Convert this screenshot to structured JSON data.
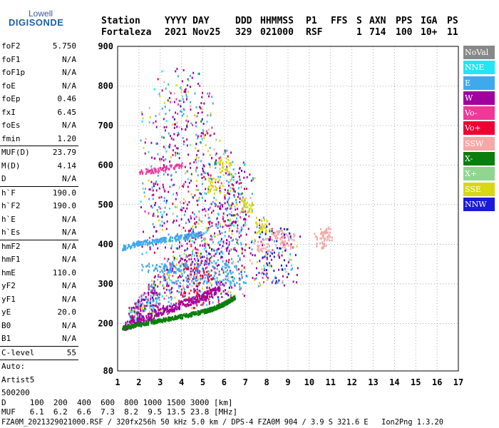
{
  "logo": {
    "top": "Lowell",
    "main": "DIGISONDE"
  },
  "header": {
    "row1": [
      {
        "text": "Station",
        "x": 142
      },
      {
        "text": "YYYY DAY",
        "x": 231
      },
      {
        "text": "DDD",
        "x": 330
      },
      {
        "text": "HHMMSS",
        "x": 365
      },
      {
        "text": "P1",
        "x": 429
      },
      {
        "text": "FFS",
        "x": 464
      },
      {
        "text": "S",
        "x": 500
      },
      {
        "text": "AXN",
        "x": 518
      },
      {
        "text": "PPS",
        "x": 555
      },
      {
        "text": "IGA",
        "x": 590
      },
      {
        "text": "PS",
        "x": 627
      }
    ],
    "row2": [
      {
        "text": "Fortaleza",
        "x": 142
      },
      {
        "text": "2021 Nov25",
        "x": 231
      },
      {
        "text": "329",
        "x": 330
      },
      {
        "text": "021000",
        "x": 365
      },
      {
        "text": "RSF",
        "x": 429
      },
      {
        "text": "1",
        "x": 500
      },
      {
        "text": "714",
        "x": 518
      },
      {
        "text": "100",
        "x": 555
      },
      {
        "text": "10+",
        "x": 590
      },
      {
        "text": "11",
        "x": 627
      }
    ]
  },
  "panel": [
    {
      "label": "foF2",
      "value": "5.750"
    },
    {
      "label": "foF1",
      "value": "N/A"
    },
    {
      "label": "foF1p",
      "value": "N/A"
    },
    {
      "label": "foE",
      "value": "N/A"
    },
    {
      "label": "foEp",
      "value": "0.46"
    },
    {
      "label": "fxI",
      "value": "6.45"
    },
    {
      "label": "foEs",
      "value": "N/A"
    },
    {
      "label": "fmin",
      "value": "1.20"
    },
    {
      "sep": true
    },
    {
      "label": "MUF(D)",
      "value": "23.79"
    },
    {
      "label": "M(D)",
      "value": "4.14"
    },
    {
      "label": "D",
      "value": "N/A"
    },
    {
      "sep": true
    },
    {
      "label": "h`F",
      "value": "190.0"
    },
    {
      "label": "h`F2",
      "value": "190.0"
    },
    {
      "label": "h`E",
      "value": "N/A"
    },
    {
      "label": "h`Es",
      "value": "N/A"
    },
    {
      "sep": true
    },
    {
      "label": "hmF2",
      "value": "N/A"
    },
    {
      "label": "hmF1",
      "value": "N/A"
    },
    {
      "label": "hmE",
      "value": "110.0"
    },
    {
      "label": "yF2",
      "value": "N/A"
    },
    {
      "label": "yF1",
      "value": "N/A"
    },
    {
      "label": "yE",
      "value": "20.0"
    },
    {
      "label": "B0",
      "value": "N/A"
    },
    {
      "label": "B1",
      "value": "N/A"
    },
    {
      "sep": true
    },
    {
      "label": "C-level",
      "value": "55"
    },
    {
      "sep": true
    },
    {
      "label": "Auto:",
      "value": ""
    },
    {
      "label": "Artist5",
      "value": ""
    },
    {
      "label": "500200",
      "value": ""
    }
  ],
  "legend": [
    {
      "label": "NoVal",
      "color": "#888888"
    },
    {
      "label": "NNE",
      "color": "#22e5f5"
    },
    {
      "label": "E",
      "color": "#3fa9ee"
    },
    {
      "label": "W",
      "color": "#a0009e"
    },
    {
      "label": "Vo-",
      "color": "#f0389a"
    },
    {
      "label": "Vo+",
      "color": "#ee0033"
    },
    {
      "label": "SSW",
      "color": "#f4a8a8"
    },
    {
      "label": "X-",
      "color": "#0b7f0b"
    },
    {
      "label": "X+",
      "color": "#8fd68f"
    },
    {
      "label": "SSE",
      "color": "#d8d812"
    },
    {
      "label": "NNW",
      "color": "#1a1adb"
    }
  ],
  "footer": {
    "d_row": "D     100  200  400  600  800 1000 1500 3000 [km]",
    "muf_row": "MUF   6.1  6.2  6.6  7.3  8.2  9.5 13.5 23.8 [MHz]",
    "info": "FZA0M_2021329021000.RSF / 320fx256h 50 kHz 5.0 km / DPS-4 FZA0M 904 / 3.9 S 321.6 E   Ion2Png 1.3.20"
  },
  "chart_data": {
    "type": "scatter",
    "title": "",
    "xlabel": "",
    "ylabel": "",
    "xlim": [
      1,
      17
    ],
    "ylim": [
      80,
      900
    ],
    "x_ticks": [
      1,
      2,
      3,
      4,
      5,
      6,
      7,
      8,
      9,
      10,
      11,
      12,
      13,
      14,
      15,
      16,
      17
    ],
    "y_ticks": [
      80,
      200,
      300,
      400,
      500,
      600,
      700,
      800,
      900
    ],
    "grid": true,
    "trace_F_lower": {
      "series": "X-",
      "points": [
        [
          1.2,
          190
        ],
        [
          2,
          200
        ],
        [
          3,
          210
        ],
        [
          4,
          220
        ],
        [
          5,
          232
        ],
        [
          5.5,
          240
        ],
        [
          6,
          252
        ],
        [
          6.5,
          268
        ]
      ]
    },
    "trace_F_upper": {
      "series": "W",
      "points": [
        [
          1.2,
          192
        ],
        [
          2,
          210
        ],
        [
          3,
          230
        ],
        [
          4,
          250
        ],
        [
          5,
          270
        ],
        [
          5.8,
          290
        ]
      ]
    },
    "trace_multi_400": {
      "series": "E",
      "points": [
        [
          1.2,
          392
        ],
        [
          2,
          405
        ],
        [
          3,
          412
        ],
        [
          4,
          420
        ],
        [
          5,
          430
        ]
      ]
    },
    "trace_multi_580": {
      "series": "Vo-",
      "points": [
        [
          2,
          585
        ],
        [
          3,
          590
        ],
        [
          4,
          603
        ]
      ]
    },
    "clusters": [
      {
        "series": "SSW",
        "points": [
          [
            7.8,
            400
          ],
          [
            8.5,
            420
          ],
          [
            9,
            410
          ],
          [
            10.5,
            410
          ],
          [
            10.8,
            425
          ]
        ]
      },
      {
        "series": "SSE",
        "points": [
          [
            5.5,
            550
          ],
          [
            6,
            600
          ],
          [
            7,
            500
          ],
          [
            7.7,
            450
          ]
        ]
      }
    ]
  }
}
